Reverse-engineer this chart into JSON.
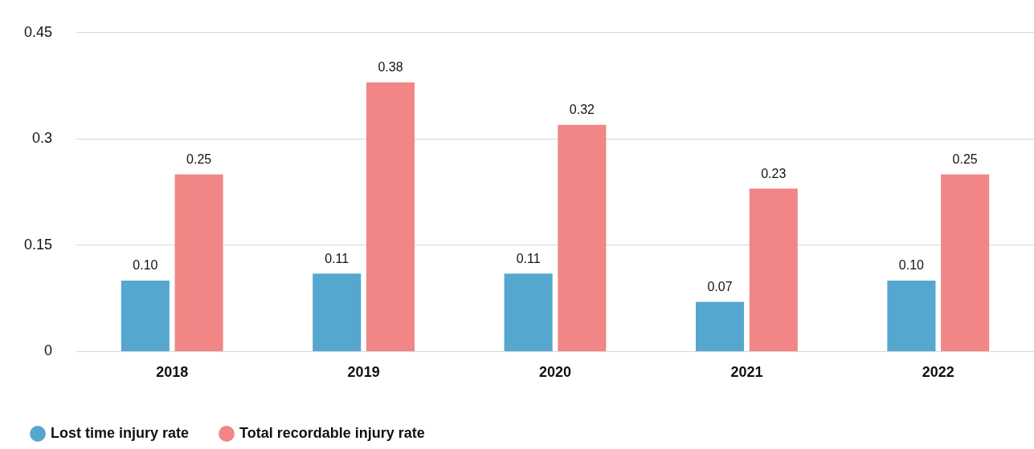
{
  "chart_data": {
    "type": "bar",
    "categories": [
      "2018",
      "2019",
      "2020",
      "2021",
      "2022"
    ],
    "series": [
      {
        "name": "Lost time injury rate",
        "color": "#55a7cf",
        "values": [
          0.1,
          0.11,
          0.11,
          0.07,
          0.1
        ],
        "value_labels": [
          "0.10",
          "0.11",
          "0.11",
          "0.07",
          "0.10"
        ]
      },
      {
        "name": "Total recordable injury rate",
        "color": "#f28585",
        "values": [
          0.25,
          0.38,
          0.32,
          0.23,
          0.25
        ],
        "value_labels": [
          "0.25",
          "0.38",
          "0.32",
          "0.23",
          "0.25"
        ]
      }
    ],
    "ylim": [
      0,
      0.45
    ],
    "yticks": [
      0,
      0.15,
      0.3,
      0.45
    ],
    "grid": "y",
    "legend": "bottom left"
  }
}
